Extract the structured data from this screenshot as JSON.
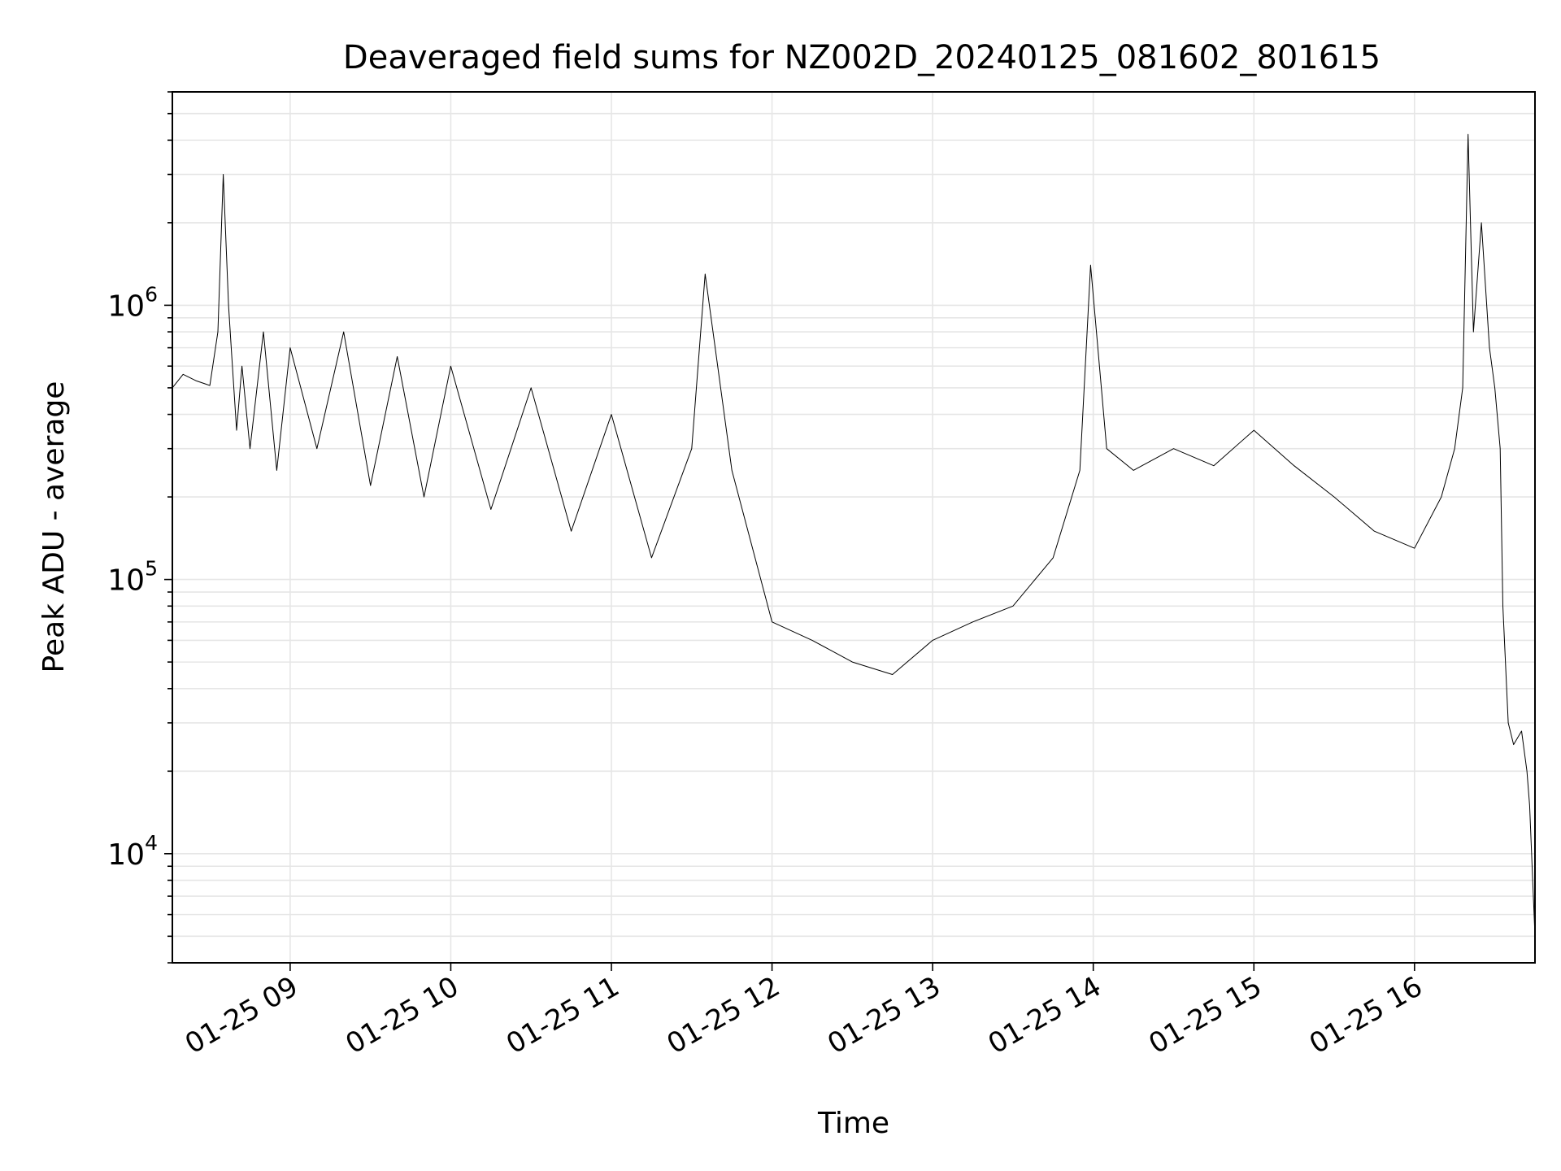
{
  "chart_data": {
    "type": "line",
    "title": "Deaveraged field sums for NZ002D_20240125_081602_801615",
    "xlabel": "Time",
    "ylabel": "Peak ADU - average",
    "y_scale": "log",
    "ylim": [
      4000,
      6000000
    ],
    "xlim": [
      "2024-01-25 08:16",
      "2024-01-25 16:45"
    ],
    "grid": true,
    "y_ticks": [
      {
        "value": 10000,
        "base": "10",
        "exp": "4"
      },
      {
        "value": 100000,
        "base": "10",
        "exp": "5"
      },
      {
        "value": 1000000,
        "base": "10",
        "exp": "6"
      }
    ],
    "x_ticks": [
      {
        "value": "2024-01-25 09:00",
        "label": "01-25 09"
      },
      {
        "value": "2024-01-25 10:00",
        "label": "01-25 10"
      },
      {
        "value": "2024-01-25 11:00",
        "label": "01-25 11"
      },
      {
        "value": "2024-01-25 12:00",
        "label": "01-25 12"
      },
      {
        "value": "2024-01-25 13:00",
        "label": "01-25 13"
      },
      {
        "value": "2024-01-25 14:00",
        "label": "01-25 14"
      },
      {
        "value": "2024-01-25 15:00",
        "label": "01-25 15"
      },
      {
        "value": "2024-01-25 16:00",
        "label": "01-25 16"
      }
    ],
    "series_color": "#000000",
    "series": [
      {
        "x": [
          "2024-01-25 08:16",
          "2024-01-25 08:20",
          "2024-01-25 08:25",
          "2024-01-25 08:30",
          "2024-01-25 08:33",
          "2024-01-25 08:35",
          "2024-01-25 08:37",
          "2024-01-25 08:38",
          "2024-01-25 08:40",
          "2024-01-25 08:42",
          "2024-01-25 08:45",
          "2024-01-25 08:50",
          "2024-01-25 08:55",
          "2024-01-25 09:00",
          "2024-01-25 09:10",
          "2024-01-25 09:20",
          "2024-01-25 09:30",
          "2024-01-25 09:40",
          "2024-01-25 09:50",
          "2024-01-25 10:00",
          "2024-01-25 10:15",
          "2024-01-25 10:30",
          "2024-01-25 10:45",
          "2024-01-25 11:00",
          "2024-01-25 11:15",
          "2024-01-25 11:30",
          "2024-01-25 11:35",
          "2024-01-25 11:45",
          "2024-01-25 12:00",
          "2024-01-25 12:15",
          "2024-01-25 12:30",
          "2024-01-25 12:45",
          "2024-01-25 13:00",
          "2024-01-25 13:15",
          "2024-01-25 13:30",
          "2024-01-25 13:45",
          "2024-01-25 13:55",
          "2024-01-25 13:59",
          "2024-01-25 14:05",
          "2024-01-25 14:15",
          "2024-01-25 14:30",
          "2024-01-25 14:45",
          "2024-01-25 15:00",
          "2024-01-25 15:15",
          "2024-01-25 15:30",
          "2024-01-25 15:45",
          "2024-01-25 16:00",
          "2024-01-25 16:10",
          "2024-01-25 16:15",
          "2024-01-25 16:18",
          "2024-01-25 16:20",
          "2024-01-25 16:22",
          "2024-01-25 16:25",
          "2024-01-25 16:28",
          "2024-01-25 16:30",
          "2024-01-25 16:32",
          "2024-01-25 16:33",
          "2024-01-25 16:35",
          "2024-01-25 16:37",
          "2024-01-25 16:40",
          "2024-01-25 16:42",
          "2024-01-25 16:43",
          "2024-01-25 16:45"
        ],
        "y": [
          500000,
          560000,
          530000,
          510000,
          800000,
          3000000,
          1000000,
          700000,
          350000,
          600000,
          300000,
          800000,
          250000,
          700000,
          300000,
          800000,
          220000,
          650000,
          200000,
          600000,
          180000,
          500000,
          150000,
          400000,
          120000,
          300000,
          1300000,
          250000,
          70000,
          60000,
          50000,
          45000,
          60000,
          70000,
          80000,
          120000,
          250000,
          1400000,
          300000,
          250000,
          300000,
          260000,
          350000,
          260000,
          200000,
          150000,
          130000,
          200000,
          300000,
          500000,
          4200000,
          800000,
          2000000,
          700000,
          500000,
          300000,
          80000,
          30000,
          25000,
          28000,
          20000,
          15000,
          5000
        ]
      }
    ]
  }
}
